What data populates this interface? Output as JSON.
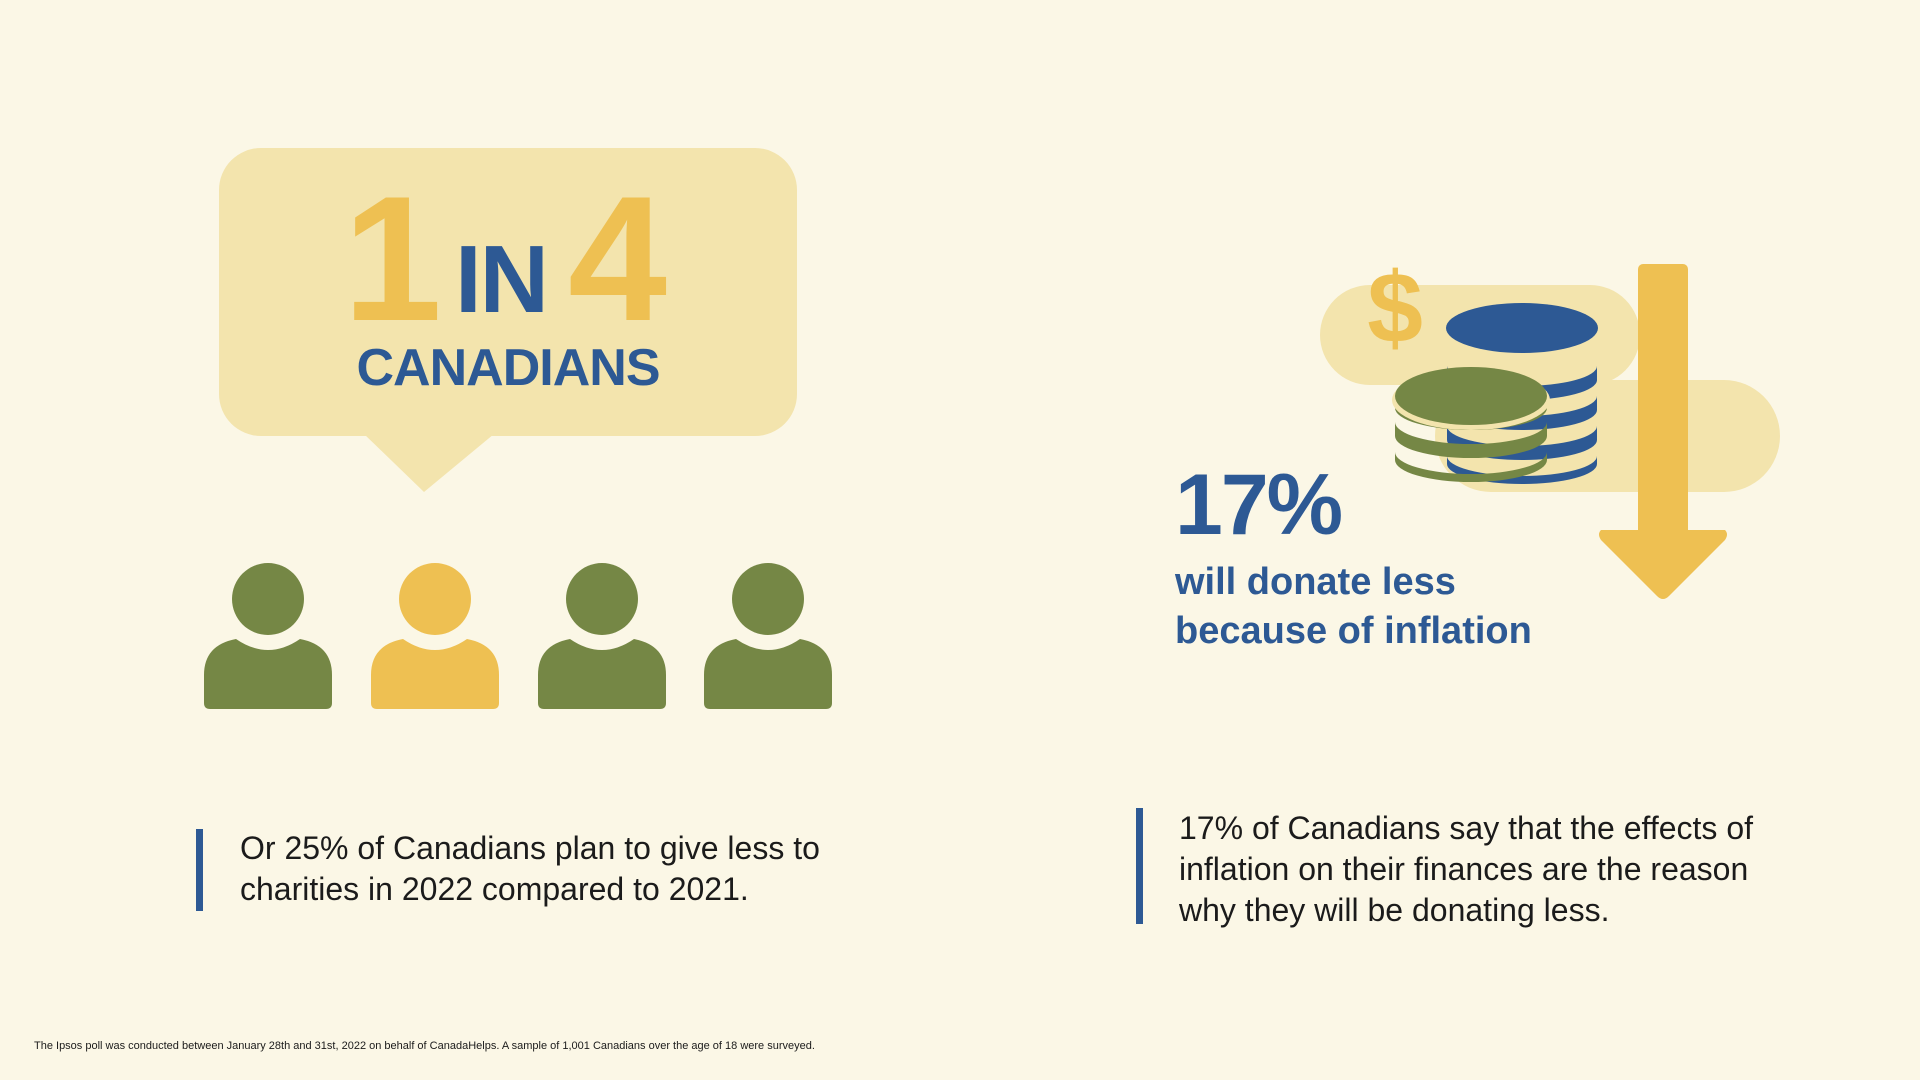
{
  "stat_left": {
    "number_one": "1",
    "word_in": "IN",
    "number_four": "4",
    "word_canadians": "CANADIANS"
  },
  "people": [
    {
      "icon": "person-icon",
      "color": "#758745"
    },
    {
      "icon": "person-icon",
      "color": "#EEC052"
    },
    {
      "icon": "person-icon",
      "color": "#758745"
    },
    {
      "icon": "person-icon",
      "color": "#758745"
    }
  ],
  "quote_left": {
    "line1": "Or 25% of Canadians plan to give less to",
    "line2": "charities in 2022 compared to 2021."
  },
  "stat_right": {
    "percent": "17%",
    "line1": "will donate less",
    "line2": "because of inflation",
    "icons": [
      "dollar-sign-icon",
      "coin-stack-icon",
      "down-arrow-icon"
    ]
  },
  "quote_right": {
    "line1": "17% of Canadians say that the effects of",
    "line2": "inflation on their finances are the reason",
    "line3": "why they will be donating less."
  },
  "footnote": "The Ipsos poll was conducted between January 28th and 31st, 2022 on behalf of CanadaHelps. A sample of 1,001 Canadians over the age of 18 were surveyed.",
  "colors": {
    "background": "#FBF7E6",
    "panel": "#F3E4AD",
    "gold": "#EEC052",
    "blue": "#2D5994",
    "green": "#758745"
  }
}
